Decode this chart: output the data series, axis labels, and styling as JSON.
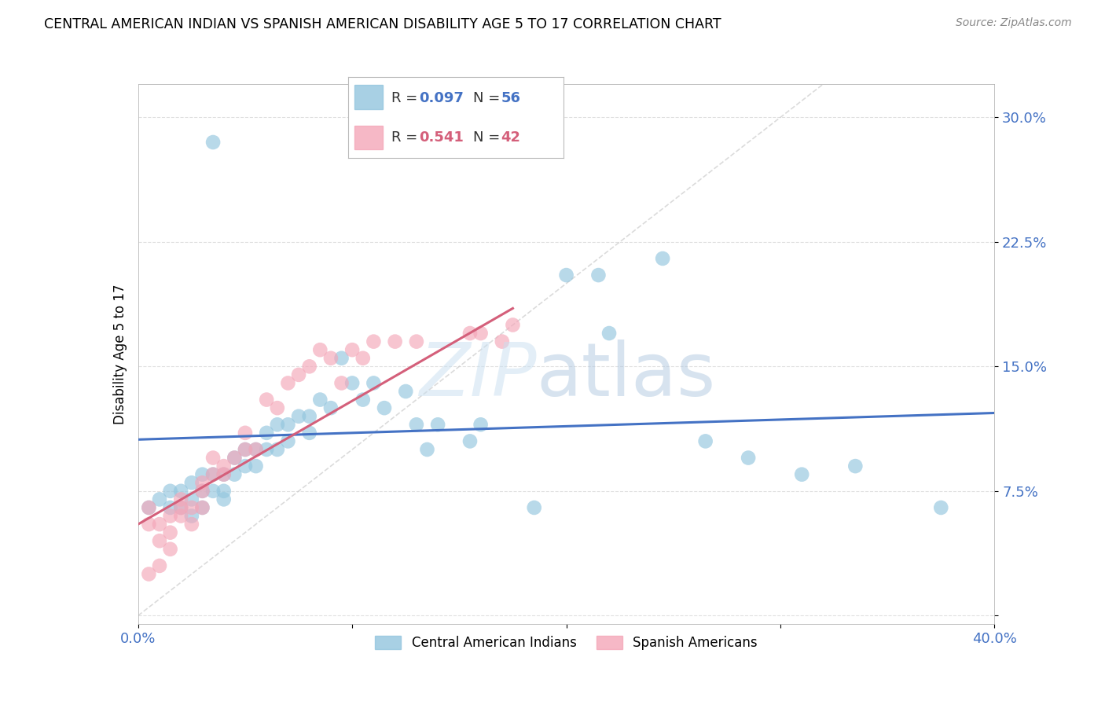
{
  "title": "CENTRAL AMERICAN INDIAN VS SPANISH AMERICAN DISABILITY AGE 5 TO 17 CORRELATION CHART",
  "source": "Source: ZipAtlas.com",
  "ylabel": "Disability Age 5 to 17",
  "yticks": [
    0.0,
    0.075,
    0.15,
    0.225,
    0.3
  ],
  "ytick_labels": [
    "",
    "7.5%",
    "15.0%",
    "22.5%",
    "30.0%"
  ],
  "xlim": [
    0.0,
    0.4
  ],
  "ylim": [
    -0.005,
    0.32
  ],
  "color_blue": "#92c5de",
  "color_pink": "#f4a6b8",
  "line_blue": "#4472c4",
  "line_pink": "#d45f7a",
  "diag_color": "#cccccc",
  "blue_scatter_x": [
    0.005,
    0.01,
    0.015,
    0.015,
    0.02,
    0.02,
    0.025,
    0.025,
    0.025,
    0.03,
    0.03,
    0.03,
    0.035,
    0.035,
    0.04,
    0.04,
    0.04,
    0.045,
    0.045,
    0.05,
    0.05,
    0.055,
    0.055,
    0.06,
    0.06,
    0.065,
    0.065,
    0.07,
    0.07,
    0.075,
    0.08,
    0.08,
    0.085,
    0.09,
    0.095,
    0.1,
    0.105,
    0.11,
    0.115,
    0.125,
    0.13,
    0.135,
    0.14,
    0.155,
    0.16,
    0.185,
    0.2,
    0.215,
    0.22,
    0.245,
    0.265,
    0.285,
    0.31,
    0.335,
    0.375,
    0.035
  ],
  "blue_scatter_y": [
    0.065,
    0.07,
    0.065,
    0.075,
    0.065,
    0.075,
    0.06,
    0.07,
    0.08,
    0.065,
    0.075,
    0.085,
    0.075,
    0.085,
    0.07,
    0.075,
    0.085,
    0.085,
    0.095,
    0.09,
    0.1,
    0.09,
    0.1,
    0.1,
    0.11,
    0.1,
    0.115,
    0.105,
    0.115,
    0.12,
    0.11,
    0.12,
    0.13,
    0.125,
    0.155,
    0.14,
    0.13,
    0.14,
    0.125,
    0.135,
    0.115,
    0.1,
    0.115,
    0.105,
    0.115,
    0.065,
    0.205,
    0.205,
    0.17,
    0.215,
    0.105,
    0.095,
    0.085,
    0.09,
    0.065,
    0.285
  ],
  "pink_scatter_x": [
    0.005,
    0.005,
    0.01,
    0.01,
    0.015,
    0.015,
    0.02,
    0.02,
    0.02,
    0.025,
    0.025,
    0.03,
    0.03,
    0.03,
    0.035,
    0.035,
    0.04,
    0.04,
    0.045,
    0.05,
    0.05,
    0.055,
    0.06,
    0.065,
    0.07,
    0.075,
    0.08,
    0.085,
    0.09,
    0.095,
    0.1,
    0.105,
    0.11,
    0.12,
    0.13,
    0.155,
    0.16,
    0.17,
    0.175,
    0.005,
    0.01,
    0.015
  ],
  "pink_scatter_y": [
    0.055,
    0.065,
    0.045,
    0.055,
    0.05,
    0.06,
    0.06,
    0.065,
    0.07,
    0.055,
    0.065,
    0.065,
    0.075,
    0.08,
    0.085,
    0.095,
    0.085,
    0.09,
    0.095,
    0.1,
    0.11,
    0.1,
    0.13,
    0.125,
    0.14,
    0.145,
    0.15,
    0.16,
    0.155,
    0.14,
    0.16,
    0.155,
    0.165,
    0.165,
    0.165,
    0.17,
    0.17,
    0.165,
    0.175,
    0.025,
    0.03,
    0.04
  ],
  "blue_line_x": [
    0.0,
    0.4
  ],
  "blue_line_y": [
    0.106,
    0.122
  ],
  "pink_line_x": [
    0.0,
    0.175
  ],
  "pink_line_y": [
    0.055,
    0.185
  ],
  "diag_line_x": [
    0.0,
    0.32
  ],
  "diag_line_y": [
    0.0,
    0.32
  ],
  "watermark_zip": "ZIP",
  "watermark_atlas": "atlas",
  "grid_color": "#e0e0e0"
}
